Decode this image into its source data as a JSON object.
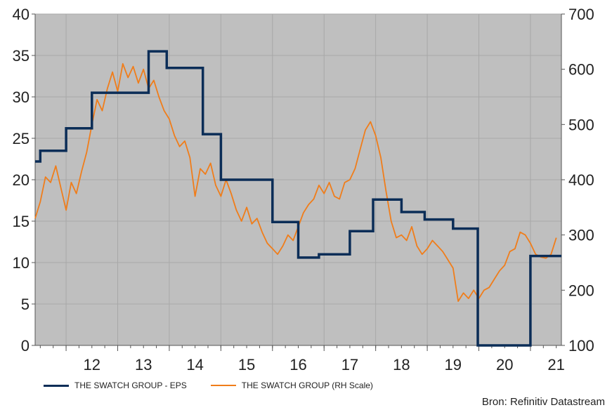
{
  "chart_data": {
    "type": "line",
    "title": "",
    "left_axis": {
      "ylim": [
        0,
        40
      ],
      "ticks": [
        "0",
        "5",
        "10",
        "15",
        "20",
        "25",
        "30",
        "35",
        "40"
      ]
    },
    "right_axis": {
      "ylim": [
        100,
        700
      ],
      "ticks": [
        "100",
        "200",
        "300",
        "400",
        "500",
        "600",
        "700"
      ]
    },
    "x_axis": {
      "xlim": [
        2011.4,
        2021.6
      ],
      "tick_labels": [
        "12",
        "13",
        "14",
        "15",
        "16",
        "17",
        "18",
        "19",
        "20",
        "21"
      ]
    },
    "grid": true,
    "background": "#bfbfbf",
    "series": [
      {
        "name": "THE SWATCH GROUP - EPS",
        "axis": "left",
        "color": "#0b2d57",
        "step": true,
        "points": [
          [
            2011.4,
            22.2
          ],
          [
            2011.5,
            23.5
          ],
          [
            2012.0,
            26.2
          ],
          [
            2012.5,
            30.5
          ],
          [
            2013.6,
            35.5
          ],
          [
            2013.95,
            33.5
          ],
          [
            2014.65,
            25.5
          ],
          [
            2015.0,
            20.0
          ],
          [
            2016.0,
            14.9
          ],
          [
            2016.5,
            10.6
          ],
          [
            2016.9,
            11.0
          ],
          [
            2017.5,
            13.8
          ],
          [
            2017.95,
            17.6
          ],
          [
            2018.5,
            16.1
          ],
          [
            2018.95,
            15.2
          ],
          [
            2019.5,
            14.1
          ],
          [
            2019.98,
            0.0
          ],
          [
            2021.0,
            10.8
          ],
          [
            2021.6,
            10.8
          ]
        ]
      },
      {
        "name": "THE SWATCH GROUP (RH Scale)",
        "axis": "right",
        "color": "#f07d1a",
        "points": [
          [
            2011.4,
            330
          ],
          [
            2011.5,
            360
          ],
          [
            2011.6,
            405
          ],
          [
            2011.7,
            395
          ],
          [
            2011.8,
            425
          ],
          [
            2011.9,
            385
          ],
          [
            2012.0,
            345
          ],
          [
            2012.1,
            395
          ],
          [
            2012.2,
            375
          ],
          [
            2012.3,
            415
          ],
          [
            2012.4,
            450
          ],
          [
            2012.5,
            500
          ],
          [
            2012.6,
            545
          ],
          [
            2012.7,
            525
          ],
          [
            2012.8,
            565
          ],
          [
            2012.9,
            595
          ],
          [
            2013.0,
            560
          ],
          [
            2013.1,
            610
          ],
          [
            2013.2,
            585
          ],
          [
            2013.3,
            605
          ],
          [
            2013.4,
            575
          ],
          [
            2013.5,
            600
          ],
          [
            2013.6,
            565
          ],
          [
            2013.7,
            580
          ],
          [
            2013.8,
            550
          ],
          [
            2013.9,
            525
          ],
          [
            2014.0,
            510
          ],
          [
            2014.1,
            480
          ],
          [
            2014.2,
            460
          ],
          [
            2014.3,
            470
          ],
          [
            2014.4,
            440
          ],
          [
            2014.5,
            370
          ],
          [
            2014.6,
            420
          ],
          [
            2014.7,
            410
          ],
          [
            2014.8,
            430
          ],
          [
            2014.9,
            390
          ],
          [
            2015.0,
            370
          ],
          [
            2015.1,
            400
          ],
          [
            2015.2,
            375
          ],
          [
            2015.3,
            345
          ],
          [
            2015.4,
            325
          ],
          [
            2015.5,
            350
          ],
          [
            2015.6,
            320
          ],
          [
            2015.7,
            330
          ],
          [
            2015.8,
            305
          ],
          [
            2015.9,
            285
          ],
          [
            2016.0,
            275
          ],
          [
            2016.1,
            265
          ],
          [
            2016.2,
            280
          ],
          [
            2016.3,
            300
          ],
          [
            2016.4,
            290
          ],
          [
            2016.5,
            315
          ],
          [
            2016.6,
            340
          ],
          [
            2016.7,
            355
          ],
          [
            2016.8,
            365
          ],
          [
            2016.9,
            390
          ],
          [
            2017.0,
            375
          ],
          [
            2017.1,
            395
          ],
          [
            2017.2,
            370
          ],
          [
            2017.3,
            365
          ],
          [
            2017.4,
            395
          ],
          [
            2017.5,
            400
          ],
          [
            2017.6,
            420
          ],
          [
            2017.7,
            455
          ],
          [
            2017.8,
            490
          ],
          [
            2017.9,
            505
          ],
          [
            2018.0,
            480
          ],
          [
            2018.1,
            440
          ],
          [
            2018.2,
            380
          ],
          [
            2018.3,
            325
          ],
          [
            2018.4,
            295
          ],
          [
            2018.5,
            300
          ],
          [
            2018.6,
            290
          ],
          [
            2018.7,
            315
          ],
          [
            2018.8,
            280
          ],
          [
            2018.9,
            265
          ],
          [
            2019.0,
            275
          ],
          [
            2019.1,
            290
          ],
          [
            2019.2,
            280
          ],
          [
            2019.3,
            270
          ],
          [
            2019.4,
            255
          ],
          [
            2019.5,
            240
          ],
          [
            2019.6,
            180
          ],
          [
            2019.7,
            195
          ],
          [
            2019.8,
            185
          ],
          [
            2019.9,
            200
          ],
          [
            2020.0,
            185
          ],
          [
            2020.1,
            200
          ],
          [
            2020.2,
            205
          ],
          [
            2020.3,
            220
          ],
          [
            2020.4,
            235
          ],
          [
            2020.5,
            245
          ],
          [
            2020.6,
            270
          ],
          [
            2020.7,
            275
          ],
          [
            2020.8,
            305
          ],
          [
            2020.9,
            300
          ],
          [
            2021.0,
            285
          ],
          [
            2021.1,
            265
          ],
          [
            2021.2,
            260
          ],
          [
            2021.3,
            258
          ],
          [
            2021.4,
            265
          ],
          [
            2021.5,
            295
          ]
        ]
      }
    ]
  },
  "legend": {
    "eps_label": "THE SWATCH GROUP - EPS",
    "price_label": "THE SWATCH GROUP (RH Scale)"
  },
  "source": "Bron: Refinitiv Datastream"
}
